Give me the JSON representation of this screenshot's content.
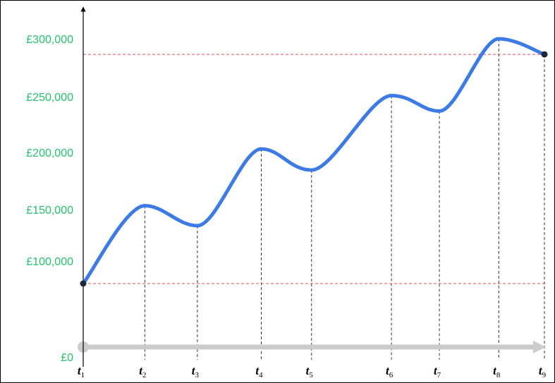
{
  "chart_data": {
    "type": "line",
    "title": "",
    "xlabel": "",
    "ylabel": "",
    "x": [
      "t1",
      "t2",
      "t3",
      "t4",
      "t5",
      "t6",
      "t7",
      "t8",
      "t9"
    ],
    "x_tick_labels": [
      {
        "base": "t",
        "sub": "1"
      },
      {
        "base": "t",
        "sub": "2"
      },
      {
        "base": "t",
        "sub": "3"
      },
      {
        "base": "t",
        "sub": "4"
      },
      {
        "base": "t",
        "sub": "5"
      },
      {
        "base": "t",
        "sub": "6"
      },
      {
        "base": "t",
        "sub": "7"
      },
      {
        "base": "t",
        "sub": "8"
      },
      {
        "base": "t",
        "sub": "9"
      }
    ],
    "x_positions": [
      0,
      1.35,
      2.5,
      3.9,
      5,
      6.75,
      7.8,
      9.1,
      10.1
    ],
    "xlim": [
      0,
      10.1
    ],
    "y_tick_values": [
      0,
      100000,
      150000,
      200000,
      250000,
      300000
    ],
    "y_tick_labels": [
      "£0",
      "£100,000",
      "£150,000",
      "£200,000",
      "£250,000",
      "£300,000"
    ],
    "ylim": [
      0,
      310000
    ],
    "series": [
      {
        "values": [
          80000,
          150000,
          132000,
          201000,
          182000,
          249000,
          235000,
          300000,
          286000
        ],
        "color": "#3c7ae6"
      }
    ],
    "reference_lines": [
      {
        "value": 80000,
        "color": "#e05050",
        "style": "dashed"
      },
      {
        "value": 286000,
        "color": "#e05050",
        "style": "dashed"
      }
    ],
    "endpoint_markers": [
      0,
      8
    ],
    "time_arrow_color": "#cccccc",
    "label_color": "#22c46a",
    "grid": false,
    "legend": "none"
  }
}
